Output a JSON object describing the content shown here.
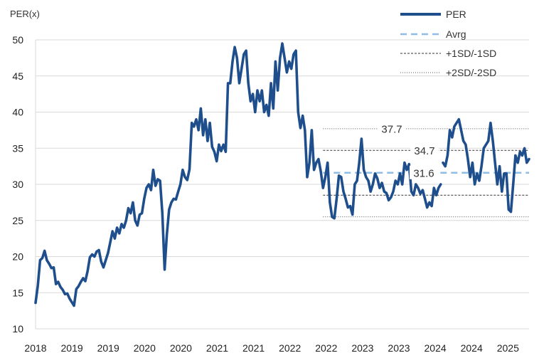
{
  "chart_data": {
    "type": "line",
    "ylabel": "PER(x)",
    "ylim": [
      10,
      50
    ],
    "yticks": [
      10,
      15,
      20,
      25,
      30,
      35,
      40,
      45,
      50
    ],
    "xticks": [
      "2018",
      "2019",
      "2019",
      "2020",
      "2020",
      "2021",
      "2021",
      "2022",
      "2022",
      "2023",
      "2023",
      "2024",
      "2024",
      "2025"
    ],
    "grid": true,
    "legend_position": "top-right",
    "legend": [
      {
        "label": "PER",
        "style": "solid-thick",
        "color": "#1f4e8c"
      },
      {
        "label": "Avrg",
        "style": "dashed",
        "color": "#8fbde6"
      },
      {
        "label": "+1SD/-1SD",
        "style": "dashed-fine",
        "color": "#333333"
      },
      {
        "label": "+2SD/-2SD",
        "style": "dotted",
        "color": "#555555"
      }
    ],
    "bands": {
      "avg": 31.6,
      "plus1sd": 34.7,
      "minus1sd": 28.5,
      "plus2sd": 37.7,
      "minus2sd": 25.5,
      "labels": [
        "37.7",
        "34.7",
        "31.6"
      ]
    },
    "series": [
      {
        "name": "PER",
        "color": "#1f4e8c",
        "segments": [
          [
            [
              0,
              13.6
            ],
            [
              1,
              16
            ],
            [
              2,
              19.5
            ],
            [
              3,
              19.8
            ],
            [
              4,
              20.8
            ],
            [
              5,
              19.5
            ],
            [
              6,
              19
            ],
            [
              7,
              18.4
            ],
            [
              8,
              18.5
            ],
            [
              9,
              16.2
            ],
            [
              10,
              16.5
            ],
            [
              11,
              15.8
            ],
            [
              12,
              15.4
            ],
            [
              13,
              14.8
            ],
            [
              14,
              14.9
            ],
            [
              15,
              14.2
            ],
            [
              16,
              13.7
            ],
            [
              17,
              13.2
            ],
            [
              18,
              15.5
            ],
            [
              19,
              15.9
            ],
            [
              20,
              16.5
            ],
            [
              21,
              17
            ],
            [
              22,
              16.6
            ],
            [
              23,
              18
            ],
            [
              24,
              19.9
            ],
            [
              25,
              20.3
            ],
            [
              26,
              20
            ],
            [
              27,
              20.7
            ],
            [
              28,
              20.9
            ],
            [
              29,
              19.3
            ],
            [
              30,
              18.5
            ],
            [
              31,
              19.5
            ],
            [
              32,
              20.5
            ],
            [
              33,
              22
            ],
            [
              34,
              23.5
            ],
            [
              35,
              22.5
            ],
            [
              36,
              24
            ],
            [
              37,
              23.2
            ],
            [
              38,
              24.5
            ],
            [
              39,
              24
            ],
            [
              40,
              25
            ],
            [
              41,
              26.7
            ],
            [
              42,
              26
            ],
            [
              43,
              27.5
            ],
            [
              44,
              25
            ],
            [
              45,
              24.3
            ],
            [
              46,
              25.8
            ],
            [
              47,
              26
            ],
            [
              48,
              28
            ],
            [
              49,
              29.5
            ],
            [
              50,
              30
            ],
            [
              51,
              29.2
            ],
            [
              52,
              32
            ],
            [
              53,
              29.8
            ],
            [
              54,
              30.7
            ],
            [
              55,
              30.5
            ],
            [
              56,
              26
            ],
            [
              57,
              18.2
            ],
            [
              58,
              23
            ],
            [
              59,
              26.5
            ],
            [
              60,
              27.5
            ],
            [
              61,
              28
            ],
            [
              62,
              27.9
            ],
            [
              63,
              29
            ],
            [
              64,
              30
            ],
            [
              65,
              32
            ],
            [
              66,
              31
            ],
            [
              67,
              30.6
            ],
            [
              68,
              32.1
            ],
            [
              69,
              38.5
            ],
            [
              70,
              38
            ],
            [
              71,
              39
            ],
            [
              72,
              37.5
            ],
            [
              73,
              40.5
            ],
            [
              74,
              36.8
            ],
            [
              75,
              39
            ],
            [
              76,
              36
            ],
            [
              77,
              38.5
            ],
            [
              78,
              35.2
            ],
            [
              79,
              34.5
            ],
            [
              80,
              33.2
            ],
            [
              81,
              35.5
            ],
            [
              82,
              34.6
            ],
            [
              83,
              35.5
            ],
            [
              84,
              34.5
            ],
            [
              85,
              44
            ],
            [
              86,
              44
            ],
            [
              87,
              47
            ],
            [
              88,
              49
            ],
            [
              89,
              47.5
            ],
            [
              90,
              44
            ],
            [
              91,
              46
            ],
            [
              92,
              48
            ],
            [
              93,
              48.5
            ],
            [
              94,
              44
            ],
            [
              95,
              41.5
            ],
            [
              96,
              42.5
            ],
            [
              97,
              40
            ],
            [
              98,
              43
            ],
            [
              99,
              41.5
            ],
            [
              100,
              43
            ],
            [
              101,
              40
            ],
            [
              102,
              41
            ],
            [
              103,
              39.5
            ],
            [
              104,
              44
            ],
            [
              105,
              40.5
            ],
            [
              106,
              47
            ],
            [
              107,
              43
            ],
            [
              108,
              47.5
            ],
            [
              109,
              49.5
            ],
            [
              110,
              47.5
            ],
            [
              111,
              45.5
            ],
            [
              112,
              47
            ],
            [
              113,
              46
            ],
            [
              114,
              48
            ],
            [
              115,
              48.5
            ],
            [
              116,
              40
            ],
            [
              117,
              37.8
            ],
            [
              118,
              39.5
            ],
            [
              119,
              37.5
            ],
            [
              120,
              31
            ],
            [
              121,
              33
            ],
            [
              122,
              37.5
            ],
            [
              123,
              32
            ],
            [
              124,
              33
            ],
            [
              125,
              33.5
            ],
            [
              126,
              31.8
            ],
            [
              127,
              29.5
            ],
            [
              128,
              31
            ],
            [
              129,
              33
            ],
            [
              130,
              27.5
            ],
            [
              131,
              25.5
            ],
            [
              132,
              25.3
            ],
            [
              133,
              28
            ],
            [
              134,
              31.2
            ],
            [
              135,
              31
            ],
            [
              136,
              29
            ],
            [
              137,
              28
            ],
            [
              138,
              26.8
            ],
            [
              139,
              27
            ],
            [
              140,
              25.8
            ],
            [
              141,
              30
            ],
            [
              142,
              30.5
            ],
            [
              143,
              33
            ],
            [
              144,
              36.3
            ],
            [
              145,
              32
            ],
            [
              146,
              31
            ],
            [
              147,
              30.5
            ],
            [
              148,
              29
            ],
            [
              149,
              30
            ],
            [
              150,
              31.5
            ],
            [
              151,
              30.8
            ],
            [
              152,
              29.5
            ],
            [
              153,
              30.2
            ],
            [
              154,
              29
            ],
            [
              155,
              28.8
            ],
            [
              156,
              27.8
            ],
            [
              157,
              28.2
            ],
            [
              158,
              29
            ],
            [
              159,
              30.5
            ],
            [
              160,
              30
            ],
            [
              161,
              31.5
            ],
            [
              162,
              30
            ],
            [
              163,
              33
            ],
            [
              164,
              32
            ],
            [
              165,
              32.8
            ],
            [
              166,
              29
            ],
            [
              167,
              28.5
            ],
            [
              168,
              30
            ],
            [
              169,
              29.5
            ],
            [
              170,
              28.7
            ],
            [
              171,
              29.2
            ],
            [
              172,
              28
            ],
            [
              173,
              26.8
            ],
            [
              174,
              27.5
            ],
            [
              175,
              27
            ],
            [
              176,
              29.5
            ],
            [
              177,
              28.5
            ],
            [
              178,
              29.5
            ],
            [
              179,
              30
            ]
          ],
          [
            [
              180,
              33
            ],
            [
              181,
              32.5
            ],
            [
              182,
              34
            ],
            [
              183,
              37.5
            ],
            [
              184,
              36.5
            ],
            [
              185,
              38
            ],
            [
              186,
              38.5
            ],
            [
              187,
              39
            ],
            [
              188,
              37.5
            ],
            [
              189,
              36
            ],
            [
              190,
              35.5
            ],
            [
              191,
              33.5
            ],
            [
              192,
              31
            ],
            [
              193,
              33
            ],
            [
              194,
              30
            ],
            [
              195,
              31.5
            ],
            [
              196,
              30.5
            ],
            [
              197,
              32.5
            ],
            [
              198,
              35
            ],
            [
              199,
              35.5
            ],
            [
              200,
              36
            ],
            [
              201,
              38.5
            ],
            [
              202,
              36
            ],
            [
              203,
              33
            ],
            [
              204,
              30
            ],
            [
              205,
              32.5
            ],
            [
              206,
              29
            ],
            [
              207,
              31.5
            ],
            [
              208,
              31.5
            ],
            [
              209,
              26.5
            ],
            [
              210,
              26.2
            ],
            [
              211,
              30
            ],
            [
              212,
              34
            ],
            [
              213,
              33
            ],
            [
              214,
              34.5
            ],
            [
              215,
              34
            ],
            [
              216,
              35
            ],
            [
              217,
              33
            ],
            [
              218,
              33.5
            ]
          ]
        ]
      }
    ]
  }
}
